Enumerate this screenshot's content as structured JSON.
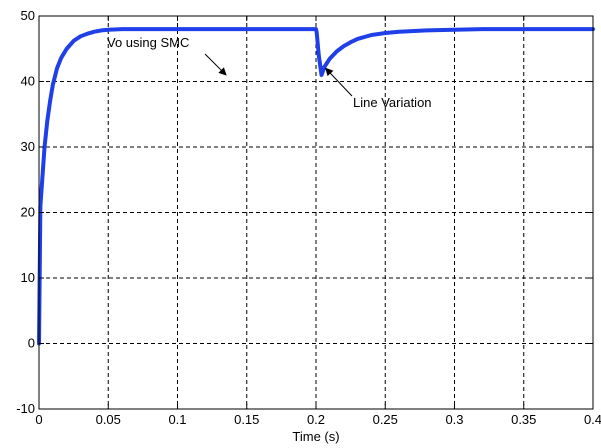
{
  "chart_data": {
    "type": "line",
    "title": "",
    "xlabel": "Time (s)",
    "ylabel": "",
    "xlim": [
      0,
      0.4
    ],
    "ylim": [
      -10,
      50
    ],
    "grid": true,
    "grid_style": "dashed",
    "x_ticks": [
      0,
      0.05,
      0.1,
      0.15,
      0.2,
      0.25,
      0.3,
      0.35,
      0.4
    ],
    "x_tick_labels": [
      "0",
      "0.05",
      "0.1",
      "0.15",
      "0.2",
      "0.25",
      "0.3",
      "0.35",
      "0.4"
    ],
    "y_ticks": [
      -10,
      0,
      10,
      20,
      30,
      40,
      50
    ],
    "y_tick_labels": [
      "-10",
      "0",
      "10",
      "20",
      "30",
      "40",
      "50"
    ],
    "series": [
      {
        "color": "#1f3fe8",
        "x": [
          0,
          0.001,
          0.002,
          0.004,
          0.006,
          0.008,
          0.01,
          0.013,
          0.016,
          0.02,
          0.025,
          0.03,
          0.035,
          0.04,
          0.045,
          0.05,
          0.06,
          0.07,
          0.08,
          0.1,
          0.12,
          0.15,
          0.18,
          0.2,
          0.2005,
          0.202,
          0.204,
          0.206,
          0.21,
          0.215,
          0.22,
          0.225,
          0.23,
          0.24,
          0.25,
          0.26,
          0.28,
          0.3,
          0.32,
          0.35,
          0.38,
          0.4
        ],
        "y": [
          0,
          21,
          24,
          30,
          34,
          37,
          39.5,
          42,
          43.6,
          45,
          46.2,
          46.9,
          47.3,
          47.6,
          47.8,
          47.9,
          48,
          48,
          48,
          48,
          48,
          48,
          48,
          48,
          47.5,
          44,
          41,
          42.2,
          43.5,
          44.6,
          45.4,
          46,
          46.5,
          47.1,
          47.4,
          47.6,
          47.8,
          47.9,
          48,
          48,
          48,
          48
        ]
      }
    ],
    "annotations": [
      {
        "text": "Vo using SMC",
        "arrow_to": [
          0.135,
          41
        ]
      },
      {
        "text": "Line Variation",
        "arrow_to": [
          0.207,
          42
        ]
      }
    ]
  }
}
